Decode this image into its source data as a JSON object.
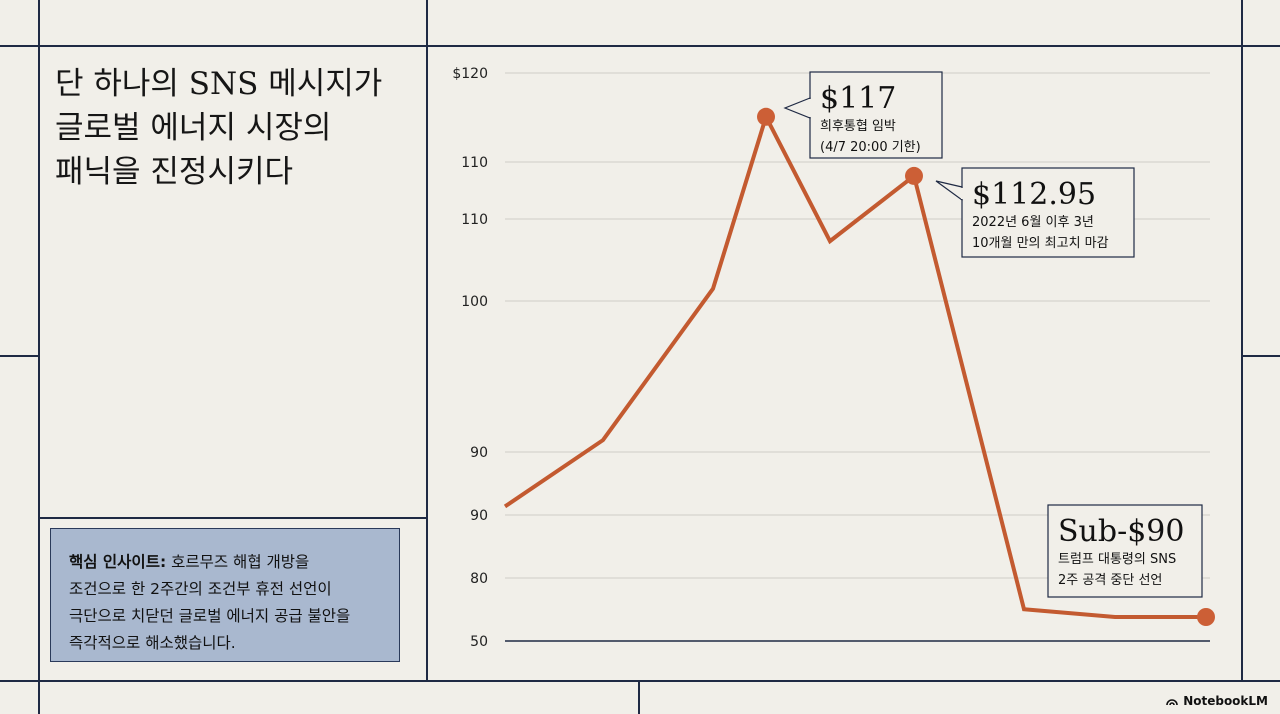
{
  "title_lines": [
    "단 하나의 SNS 메시지가",
    "글로벌 에너지 시장의",
    "패닉을 진정시키다"
  ],
  "insight": {
    "label": "핵심 인사이트:",
    "lines": [
      "호르무즈 해협 개방을",
      "조건으로 한 2주간의 조건부 휴전 선언이",
      "극단으로 치닫던 글로벌 에너지 공급 불안을",
      "즉각적으로 해소했습니다."
    ]
  },
  "brand": "NotebookLM",
  "colors": {
    "line": "#c35a30",
    "marker": "#cc5f36",
    "frame": "#1f2a44",
    "insight_bg": "#a9b8cf"
  },
  "chart_data": {
    "type": "line",
    "y_tick_labels": [
      "$120",
      "110",
      "110",
      "100",
      "90",
      "90",
      "80",
      "50"
    ],
    "values": [
      90.4,
      93.5,
      101.5,
      117,
      107.3,
      112.95,
      78.4,
      78,
      78
    ],
    "highlight_indices": [
      3,
      5,
      8
    ],
    "annotations": [
      {
        "index": 3,
        "big": "$117",
        "lines": [
          "희후통협 임박",
          "(4/7 20:00 기한)"
        ]
      },
      {
        "index": 5,
        "big": "$112.95",
        "lines": [
          "2022년 6월 이후 3년",
          "10개월 만의 최고치 마감"
        ]
      },
      {
        "index": 8,
        "big": "Sub-$90",
        "lines": [
          "트럼프 대통령의 SNS",
          "2주 공격 중단 선언"
        ]
      }
    ]
  }
}
